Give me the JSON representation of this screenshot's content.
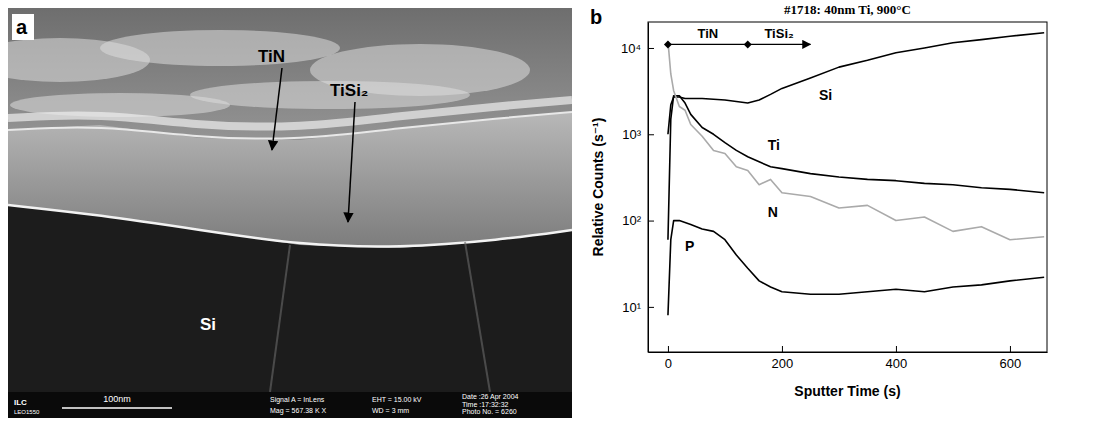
{
  "image": {
    "letter": "a",
    "labels": [
      "TiN",
      "TiSi₂",
      "Si"
    ],
    "scale_bar": "100nm",
    "logo": "ILC",
    "instrument": "LEO1550",
    "info": [
      "Signal A = InLens",
      "Mag = 567.38 K X",
      "EHT = 15.00 kV",
      "WD = 3 mm",
      "Date :26 Apr 2004",
      "Time :17:32:32",
      "Photo No. = 6260"
    ]
  },
  "chart_data": {
    "type": "line",
    "letter": "b",
    "title": "#1718: 40nm Ti, 900°C",
    "x_label": "Sputter Time (s)",
    "y_label": "Relative Counts (s⁻¹)",
    "log": "y",
    "xlim": [
      -35,
      665
    ],
    "ylim": [
      3,
      20000
    ],
    "xticks": [
      0,
      200,
      400,
      600
    ],
    "yticks": [
      {
        "value": 10,
        "label": "10¹"
      },
      {
        "value": 100,
        "label": "10²"
      },
      {
        "value": 1000,
        "label": "10³"
      },
      {
        "value": 10000,
        "label": "10⁴"
      }
    ],
    "x": [
      0,
      5,
      10,
      20,
      30,
      40,
      60,
      80,
      100,
      120,
      140,
      160,
      180,
      200,
      250,
      300,
      350,
      400,
      450,
      500,
      550,
      600,
      660
    ],
    "series": [
      {
        "name": "Si",
        "color": "#000000",
        "label_position": [
          265,
          2500
        ],
        "values": [
          1000,
          2200,
          2700,
          2700,
          2600,
          2600,
          2600,
          2550,
          2500,
          2400,
          2300,
          2500,
          2900,
          3400,
          4500,
          6000,
          7200,
          8800,
          10000,
          11500,
          12500,
          13700,
          15000
        ]
      },
      {
        "name": "Ti",
        "color": "#000000",
        "label_position": [
          175,
          650
        ],
        "values": [
          60,
          1500,
          2800,
          2800,
          2300,
          1700,
          1200,
          1000,
          800,
          650,
          550,
          480,
          420,
          400,
          350,
          320,
          300,
          290,
          270,
          260,
          240,
          230,
          210
        ]
      },
      {
        "name": "N",
        "color": "#aaaaaa",
        "label_position": [
          175,
          110
        ],
        "values": [
          12000,
          5000,
          3200,
          2100,
          1900,
          1300,
          950,
          650,
          600,
          420,
          380,
          260,
          300,
          210,
          190,
          140,
          150,
          100,
          110,
          75,
          85,
          60,
          65
        ]
      },
      {
        "name": "P",
        "color": "#000000",
        "label_position": [
          30,
          45
        ],
        "values": [
          8,
          60,
          100,
          100,
          95,
          90,
          80,
          75,
          60,
          40,
          28,
          20,
          17,
          15,
          14,
          14,
          15,
          16,
          15,
          17,
          18,
          20,
          22
        ]
      }
    ],
    "regions": [
      {
        "label": "TiN",
        "start": 0,
        "end": 140,
        "y": 11000
      },
      {
        "label": "TiSi₂",
        "start": 140,
        "end": 250,
        "y": 11000
      }
    ]
  }
}
